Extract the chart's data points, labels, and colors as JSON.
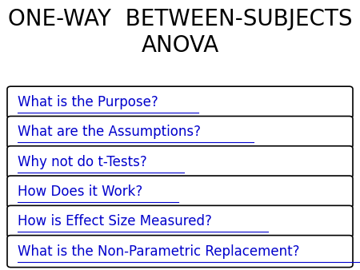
{
  "title_line1": "ONE-WAY  BETWEEN-SUBJECTS",
  "title_line2": "ANOVA",
  "title_fontsize": 20,
  "title_color": "#000000",
  "buttons": [
    "What is the Purpose?",
    "What are the Assumptions?",
    "Why not do t-Tests?",
    "How Does it Work?",
    "How is Effect Size Measured?",
    "What is the Non-Parametric Replacement?"
  ],
  "button_text_color": "#0000CC",
  "button_border_color": "#000000",
  "button_bg_color": "#FFFFFF",
  "background_color": "#FFFFFF",
  "button_fontsize": 12
}
